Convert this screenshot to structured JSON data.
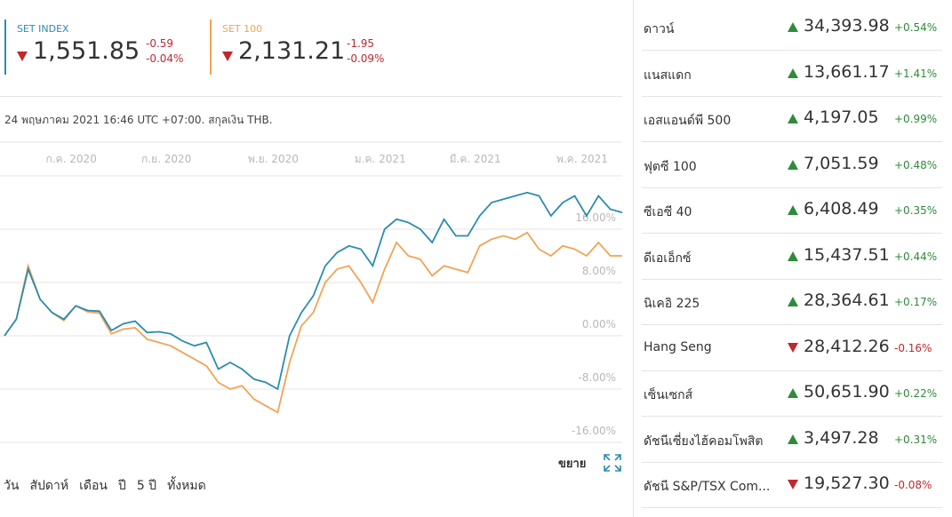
{
  "header": {
    "cards": [
      {
        "direction": "down",
        "value": "1,551.85",
        "change": "-0.59",
        "change_pct": "-0.04%"
      },
      {
        "direction": "down",
        "value": "2,131.21",
        "change": "-1.95",
        "change_pct": "-0.09%"
      }
    ],
    "timestamp": "24 พฤษภาคม 2021 16:46 UTC +07:00. สกุลเงิน THB."
  },
  "chart_data": {
    "type": "line",
    "categories": [
      null,
      null,
      null,
      null,
      null,
      null,
      "ก.ค. 2020",
      null,
      null,
      null,
      null,
      null,
      null,
      null,
      "ก.ย. 2020",
      null,
      null,
      null,
      null,
      null,
      null,
      null,
      null,
      "พ.ย. 2020",
      null,
      null,
      null,
      null,
      null,
      null,
      null,
      null,
      "ม.ค. 2021",
      null,
      null,
      null,
      null,
      null,
      null,
      null,
      "มี.ค. 2021",
      null,
      null,
      null,
      null,
      null,
      null,
      null,
      null,
      "พ.ค. 2021",
      null,
      null,
      null
    ],
    "series": [
      {
        "name": "SET INDEX",
        "color": "#2b8cb0",
        "values": [
          0,
          2.5,
          10,
          5.5,
          3.5,
          2.5,
          4.5,
          3.8,
          3.7,
          0.8,
          1.8,
          2.2,
          0.5,
          0.6,
          0.3,
          -0.8,
          -1.5,
          -1,
          -5,
          -4,
          -5,
          -6.5,
          -7,
          -8,
          0,
          3.5,
          6,
          10.5,
          12.5,
          13.5,
          13,
          10.5,
          16,
          17.5,
          17,
          16,
          14,
          17.5,
          15,
          15,
          18,
          20,
          20.5,
          21,
          21.5,
          21,
          18,
          20,
          21,
          18,
          21,
          19,
          18.5
        ]
      },
      {
        "name": "SET 100",
        "color": "#f3a356",
        "values": [
          0,
          2.5,
          10.5,
          5.5,
          3.5,
          2.3,
          4.5,
          3.6,
          3.4,
          0.3,
          1,
          1.2,
          -0.5,
          -1,
          -1.5,
          -2.5,
          -3.5,
          -4.5,
          -7,
          -8,
          -7.5,
          -9.5,
          -10.5,
          -11.5,
          -4,
          1.5,
          3.5,
          8,
          10,
          10.5,
          8,
          5,
          10,
          14,
          12,
          11.5,
          9,
          10.5,
          10,
          9.5,
          13.5,
          14.5,
          15,
          14.5,
          15.5,
          13,
          12,
          13.5,
          13,
          12,
          14,
          12,
          12
        ]
      }
    ],
    "ylim": [
      -16,
      24
    ],
    "yticks": [
      {
        "value": 16,
        "label": "16.00%"
      },
      {
        "value": 8,
        "label": "8.00%"
      },
      {
        "value": 0,
        "label": "0.00%"
      },
      {
        "value": -8,
        "label": "-8.00%"
      },
      {
        "value": -16,
        "label": "-16.00%"
      }
    ],
    "grid": true
  },
  "footer": {
    "expand": "ขยาย",
    "ranges": [
      "วัน",
      "สัปดาห์",
      "เดือน",
      "ปี",
      "5 ปี",
      "ทั้งหมด"
    ]
  },
  "markets": [
    {
      "name": "ดาวน์",
      "direction": "up",
      "value": "34,393.98",
      "change_pct": "+0.54%"
    },
    {
      "name": "แนสแดก",
      "direction": "up",
      "value": "13,661.17",
      "change_pct": "+1.41%"
    },
    {
      "name": "เอสแอนด์พี 500",
      "direction": "up",
      "value": "4,197.05",
      "change_pct": "+0.99%"
    },
    {
      "name": "ฟุตซี 100",
      "direction": "up",
      "value": "7,051.59",
      "change_pct": "+0.48%"
    },
    {
      "name": "ซีเอซี 40",
      "direction": "up",
      "value": "6,408.49",
      "change_pct": "+0.35%"
    },
    {
      "name": "ดีเอเอ็กซ์",
      "direction": "up",
      "value": "15,437.51",
      "change_pct": "+0.44%"
    },
    {
      "name": "นิเคอิ 225",
      "direction": "up",
      "value": "28,364.61",
      "change_pct": "+0.17%"
    },
    {
      "name": "Hang Seng",
      "direction": "down",
      "value": "28,412.26",
      "change_pct": "-0.16%"
    },
    {
      "name": "เซ็นเซกส์",
      "direction": "up",
      "value": "50,651.90",
      "change_pct": "+0.22%"
    },
    {
      "name": "ดัชนีเซี่ยงไฮ้คอมโพสิต",
      "direction": "up",
      "value": "3,497.28",
      "change_pct": "+0.31%"
    },
    {
      "name": "ดัชนี S&P/TSX Com...",
      "direction": "down",
      "value": "19,527.30",
      "change_pct": "-0.08%"
    }
  ]
}
